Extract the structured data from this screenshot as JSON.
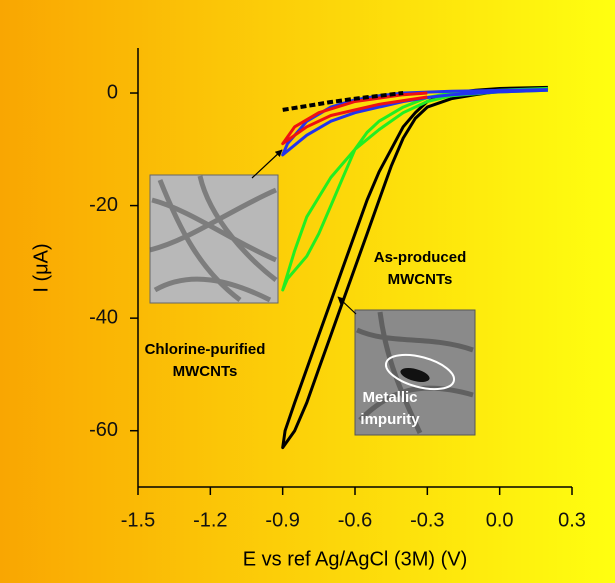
{
  "chart_data": {
    "type": "line",
    "xlabel": "E vs ref Ag/AgCl (3M) (V)",
    "ylabel": "I (μA)",
    "xlim": [
      -1.5,
      0.3
    ],
    "ylim": [
      -70,
      8
    ],
    "xticks": [
      -1.5,
      -1.2,
      -0.9,
      -0.6,
      -0.3,
      {
        "value": 0,
        "label": "0.0"
      },
      0.3
    ],
    "yticks": [
      0,
      -20,
      -40,
      -60
    ],
    "annotations": [
      [
        "As-produced",
        "MWCNTs"
      ],
      [
        "Chlorine-purified",
        "MWCNTs"
      ],
      [
        "Metallic",
        "impurity"
      ]
    ],
    "series": [
      {
        "color": "#000000",
        "x": [
          0.2,
          0.1,
          0,
          -0.1,
          -0.2,
          -0.3,
          -0.35,
          -0.4,
          -0.45,
          -0.5,
          -0.55,
          -0.6,
          -0.65,
          -0.7,
          -0.75,
          -0.8,
          -0.85,
          -0.9,
          -0.89,
          -0.85,
          -0.8,
          -0.75,
          -0.7,
          -0.65,
          -0.6,
          -0.55,
          -0.5,
          -0.45,
          -0.4,
          -0.35,
          -0.3,
          -0.2,
          -0.1,
          0,
          0.2
        ],
        "values": [
          0.8,
          0.6,
          0.3,
          -0.3,
          -1,
          -2.5,
          -4.5,
          -8,
          -13,
          -19,
          -25,
          -31,
          -37,
          -43,
          -49,
          -55,
          -60,
          -63,
          -60,
          -55,
          -49,
          -43,
          -37,
          -31,
          -25,
          -19,
          -14,
          -10,
          -6,
          -3.5,
          -1.5,
          0,
          0.5,
          0.8,
          1
        ]
      },
      {
        "color": "#22ee22",
        "x": [
          0.2,
          0,
          -0.2,
          -0.3,
          -0.4,
          -0.5,
          -0.6,
          -0.7,
          -0.8,
          -0.85,
          -0.9,
          -0.88,
          -0.8,
          -0.75,
          -0.7,
          -0.65,
          -0.6,
          -0.55,
          -0.5,
          -0.4,
          -0.3,
          -0.2,
          0,
          0.2
        ],
        "values": [
          0.5,
          0.2,
          -0.5,
          -1.5,
          -3.5,
          -6.5,
          -10,
          -15,
          -22,
          -28,
          -35,
          -33,
          -29,
          -25,
          -20,
          -15,
          -10,
          -7,
          -5,
          -2.5,
          -0.8,
          0,
          0.5,
          0.8
        ]
      },
      {
        "color": "#2233ee",
        "x": [
          0.2,
          0,
          -0.2,
          -0.3,
          -0.4,
          -0.5,
          -0.6,
          -0.7,
          -0.8,
          -0.9,
          -0.88,
          -0.8,
          -0.7,
          -0.6,
          -0.5,
          -0.4,
          -0.2,
          0.2
        ],
        "values": [
          0.5,
          0.2,
          -0.3,
          -0.8,
          -1.5,
          -2.5,
          -3.5,
          -5,
          -7.5,
          -11,
          -9,
          -5,
          -2.5,
          -1.2,
          -0.5,
          0,
          0.3,
          0.6
        ]
      },
      {
        "color": "#ee1111",
        "x": [
          -0.3,
          -0.5,
          -0.7,
          -0.8,
          -0.9,
          -0.85,
          -0.75,
          -0.6,
          -0.4,
          -0.3
        ],
        "values": [
          -0.7,
          -2,
          -4,
          -6,
          -9,
          -6,
          -3.5,
          -1.5,
          -0.3,
          0
        ]
      },
      {
        "color": "#000000",
        "dashed": true,
        "x": [
          -0.9,
          -0.8,
          -0.7,
          -0.6,
          -0.5,
          -0.4
        ],
        "values": [
          -3,
          -2.3,
          -1.6,
          -1,
          -0.5,
          0
        ]
      }
    ]
  }
}
